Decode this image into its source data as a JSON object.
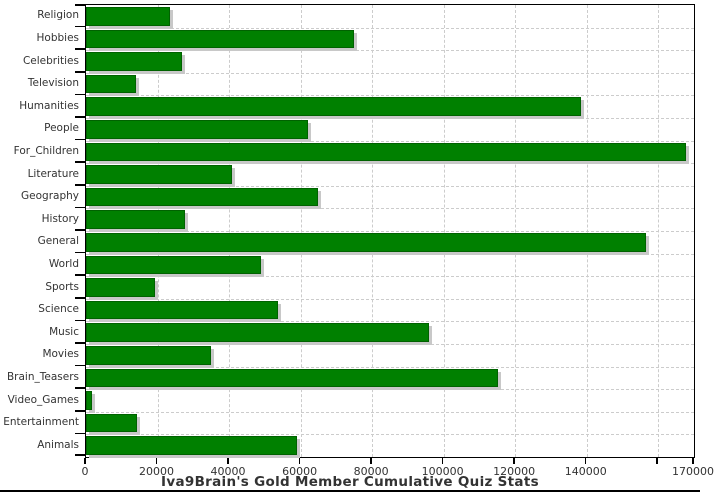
{
  "chart_data": {
    "type": "bar",
    "orientation": "horizontal",
    "title": "Iva9Brain's Gold Member Cumulative Quiz Stats",
    "categories": [
      "Religion",
      "Hobbies",
      "Celebrities",
      "Television",
      "Humanities",
      "People",
      "For_Children",
      "Literature",
      "Geography",
      "History",
      "General",
      "World",
      "Sports",
      "Science",
      "Music",
      "Movies",
      "Brain_Teasers",
      "Video_Games",
      "Entertainment",
      "Animals"
    ],
    "values": [
      23500,
      75000,
      26800,
      14100,
      138300,
      62000,
      167700,
      40900,
      64900,
      27800,
      156500,
      48900,
      19400,
      53600,
      96000,
      34900,
      115300,
      1600,
      14300,
      59000
    ],
    "xlim": [
      0,
      170000
    ],
    "xticks": [
      {
        "value": 0,
        "label": "0"
      },
      {
        "value": 20000,
        "label": "20000"
      },
      {
        "value": 40000,
        "label": "40000"
      },
      {
        "value": 60000,
        "label": "60000"
      },
      {
        "value": 80000,
        "label": "80000"
      },
      {
        "value": 100000,
        "label": "100000"
      },
      {
        "value": 120000,
        "label": "120000"
      },
      {
        "value": 140000,
        "label": "140000"
      },
      {
        "value": 160000,
        "label": ""
      },
      {
        "value": 170000,
        "label": "170000"
      }
    ],
    "grid": true,
    "legend": "none",
    "colors": {
      "bar_fill": "#008000",
      "bar_edge": "#006200",
      "bar_shadow": "#c8c8c8",
      "gridline": "#cccccc",
      "axis": "#000000",
      "text": "#333333",
      "background": "#ffffff"
    }
  }
}
